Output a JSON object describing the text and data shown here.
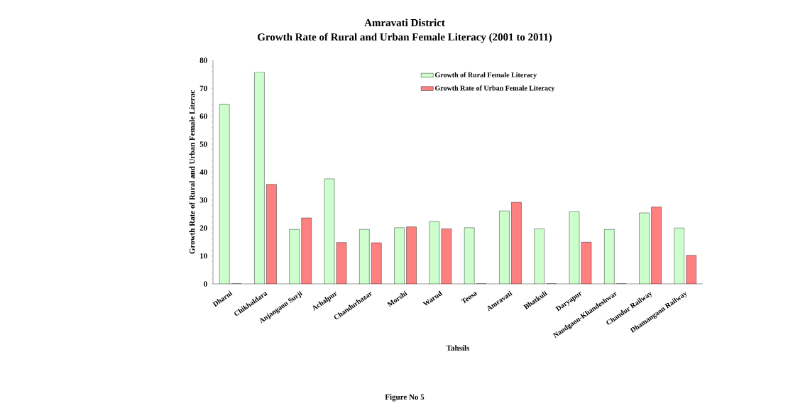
{
  "chart_data": {
    "type": "bar",
    "title": "Amravati District",
    "subtitle": "Growth Rate of Rural and Urban Female Literacy (2001 to 2011)",
    "xlabel": "Tahsils",
    "ylabel": "Growth Rate of Rural and Urban Female Literac",
    "categories": [
      "Dharni",
      "Chikhaldara",
      "Anjangaon Surji",
      "Achalpur",
      "Chandurbazar",
      "Morshi",
      "Warud",
      "Teosa",
      "Amravati",
      "Bhatkuli",
      "Daryapur",
      "Nandgaon-Khandeshwar",
      "Chandur Railway",
      "Dhamangaon Railway"
    ],
    "series": [
      {
        "name": "Growth of Rural Female Literacy",
        "color": "#ccffcc",
        "values": [
          64.2,
          75.7,
          19.5,
          37.6,
          19.5,
          20.1,
          22.3,
          20.1,
          26.1,
          19.7,
          25.8,
          19.5,
          25.4,
          20.0
        ]
      },
      {
        "name": "Growth Rate of Urban Female Literacy",
        "color": "#ff8080",
        "values": [
          0,
          35.6,
          23.6,
          14.8,
          14.7,
          20.4,
          19.7,
          0,
          29.2,
          0,
          14.9,
          0,
          27.5,
          10.2
        ]
      }
    ],
    "ylim": [
      0,
      80
    ],
    "yticks": [
      0,
      10,
      20,
      30,
      40,
      50,
      60,
      70,
      80
    ],
    "grid": false,
    "legend": "top",
    "annotations": [
      "Figure No 5"
    ]
  }
}
